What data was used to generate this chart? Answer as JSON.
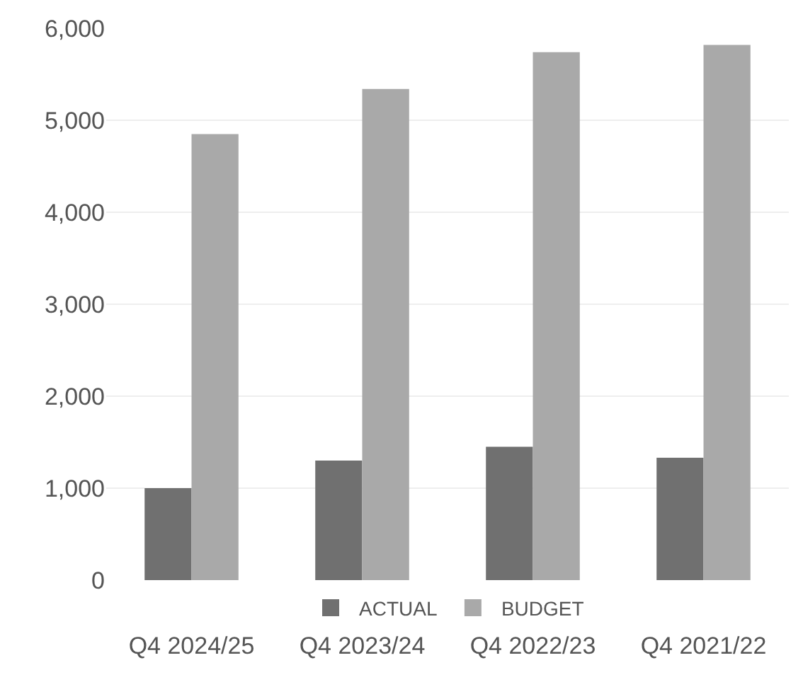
{
  "chart_data": {
    "type": "bar",
    "categories": [
      "Q4 2024/25",
      "Q4 2023/24",
      "Q4 2022/23",
      "Q4 2021/22"
    ],
    "series": [
      {
        "name": "ACTUAL",
        "color": "#707070",
        "values": [
          1000,
          1300,
          1450,
          1330
        ]
      },
      {
        "name": "BUDGET",
        "color": "#a9a9a9",
        "values": [
          4850,
          5340,
          5740,
          5820
        ]
      }
    ],
    "ylim": [
      0,
      6000
    ],
    "yticks": [
      {
        "value": 0,
        "label": "0"
      },
      {
        "value": 1000,
        "label": "1,000"
      },
      {
        "value": 2000,
        "label": "2,000"
      },
      {
        "value": 3000,
        "label": "3,000"
      },
      {
        "value": 4000,
        "label": "4,000"
      },
      {
        "value": 5000,
        "label": "5,000"
      },
      {
        "value": 6000,
        "label": "6,000"
      }
    ],
    "grid": "y",
    "legend": "bottom"
  }
}
